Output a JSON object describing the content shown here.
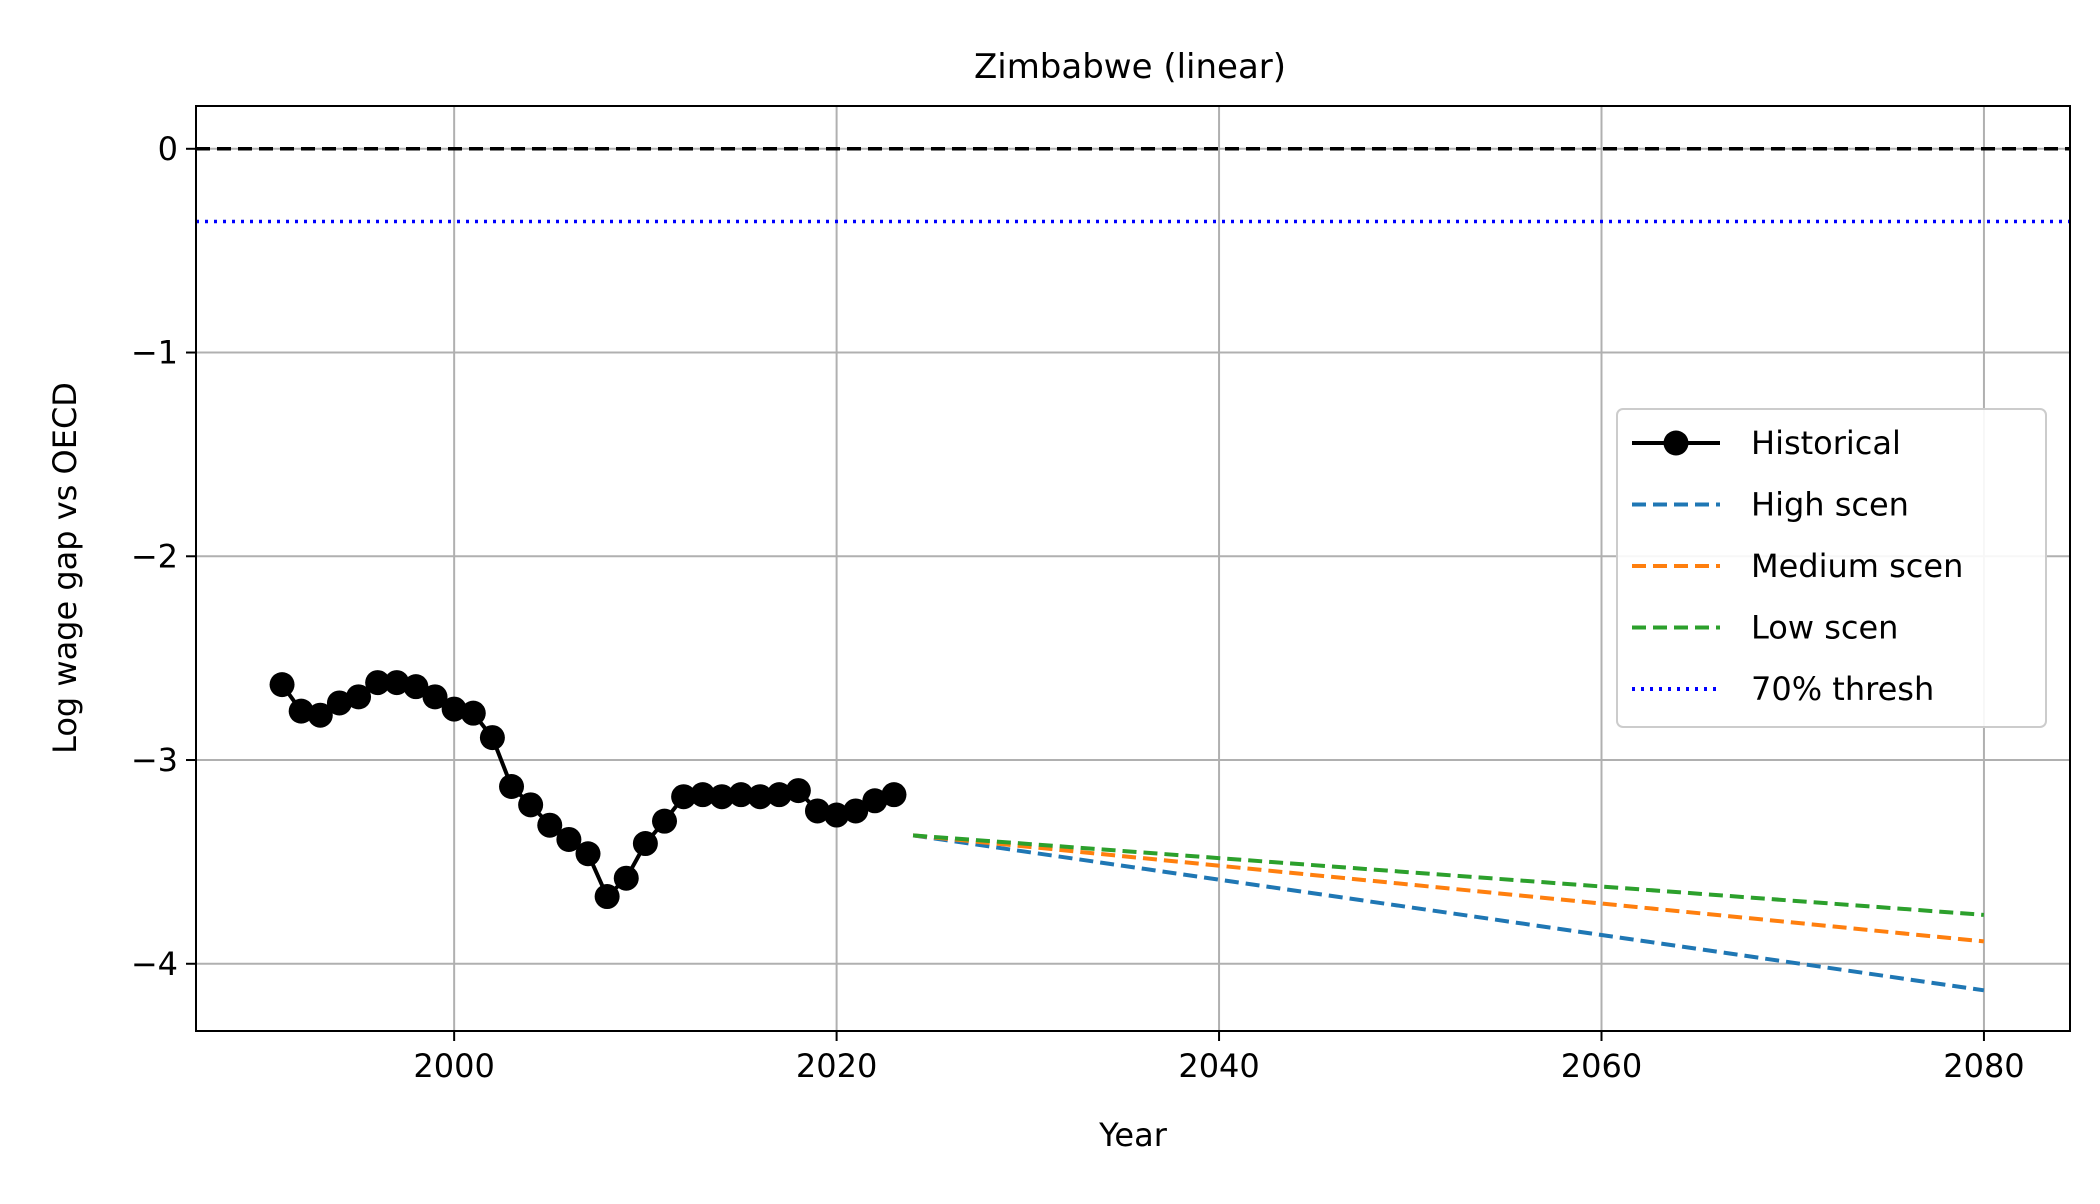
{
  "chart_data": {
    "type": "line",
    "title": "Zimbabwe (linear)",
    "xlabel": "Year",
    "ylabel": "Log wage gap vs OECD",
    "xlim": [
      1986.5,
      2084.5
    ],
    "ylim": [
      -4.33,
      0.21
    ],
    "x_ticks": [
      2000,
      2020,
      2040,
      2060,
      2080
    ],
    "x_tick_labels": [
      "2000",
      "2020",
      "2040",
      "2060",
      "2080"
    ],
    "y_ticks": [
      0,
      -1,
      -2,
      -3,
      -4
    ],
    "y_tick_labels": [
      "0",
      "−1",
      "−2",
      "−3",
      "−4"
    ],
    "grid": true,
    "legend_position": "center-right",
    "reference_lines": [
      {
        "y": 0,
        "color": "#000000",
        "style": "dashed"
      },
      {
        "y": -0.357,
        "color": "#0000ff",
        "style": "dotted"
      }
    ],
    "series": [
      {
        "name": "Historical",
        "color": "#000000",
        "style": "solid-marker",
        "x": [
          1991,
          1992,
          1993,
          1994,
          1995,
          1996,
          1997,
          1998,
          1999,
          2000,
          2001,
          2002,
          2003,
          2004,
          2005,
          2006,
          2007,
          2008,
          2009,
          2010,
          2011,
          2012,
          2013,
          2014,
          2015,
          2016,
          2017,
          2018,
          2019,
          2020,
          2021,
          2022,
          2023
        ],
        "y": [
          -2.63,
          -2.76,
          -2.78,
          -2.72,
          -2.69,
          -2.62,
          -2.62,
          -2.64,
          -2.69,
          -2.75,
          -2.77,
          -2.89,
          -3.13,
          -3.22,
          -3.32,
          -3.39,
          -3.46,
          -3.67,
          -3.58,
          -3.41,
          -3.3,
          -3.18,
          -3.17,
          -3.18,
          -3.17,
          -3.18,
          -3.17,
          -3.15,
          -3.25,
          -3.27,
          -3.25,
          -3.2,
          -3.17
        ]
      },
      {
        "name": "High scen",
        "color": "#1f77b4",
        "style": "dashed",
        "x": [
          2024,
          2080
        ],
        "y": [
          -3.37,
          -4.13
        ]
      },
      {
        "name": "Medium scen",
        "color": "#ff7f0e",
        "style": "dashed",
        "x": [
          2024,
          2080
        ],
        "y": [
          -3.37,
          -3.89
        ]
      },
      {
        "name": "Low scen",
        "color": "#2ca02c",
        "style": "dashed",
        "x": [
          2024,
          2080
        ],
        "y": [
          -3.37,
          -3.76
        ]
      },
      {
        "name": "70% thresh",
        "color": "#0000ff",
        "style": "dotted",
        "x": [
          1986.5,
          2084.5
        ],
        "y": [
          -0.357,
          -0.357
        ]
      }
    ]
  }
}
